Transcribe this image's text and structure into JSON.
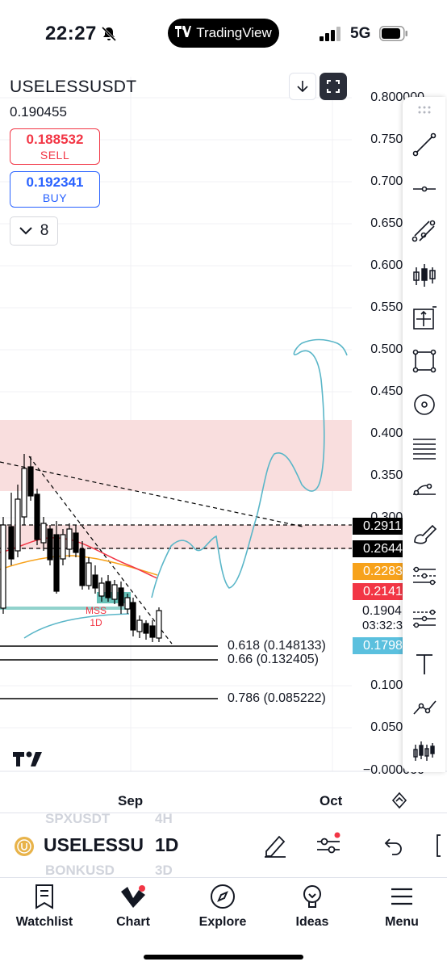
{
  "status_bar": {
    "time": "22:27",
    "app_pill": "TradingView",
    "network": "5G"
  },
  "chart": {
    "symbol": "USELESSUSDT",
    "last_price": "0.190455",
    "sell": {
      "price": "0.188532",
      "label": "SELL"
    },
    "buy": {
      "price": "0.192341",
      "label": "BUY"
    },
    "indicators_count": "8",
    "price_scale": [
      "0.800000",
      "0.750000",
      "0.700000",
      "0.650000",
      "0.600000",
      "0.550000",
      "0.500000",
      "0.450000",
      "0.400000",
      "0.350000",
      "0.300000",
      "0.100000",
      "0.050000",
      "−0.000000"
    ],
    "price_tags": [
      {
        "value": "0.2911",
        "color": "#000000"
      },
      {
        "value": "0.2644",
        "color": "#000000"
      },
      {
        "value": "0.2283",
        "color": "#f7a21b"
      },
      {
        "value": "0.2141",
        "color": "#f23645"
      },
      {
        "value": "0.1798",
        "color": "#5bc0de"
      }
    ],
    "current_price_label": "0.1904",
    "countdown": "03:32:3",
    "fib_levels": [
      {
        "label": "0.618 (0.148133)"
      },
      {
        "label": "0.66 (0.132405)"
      },
      {
        "label": "0.786 (0.085222)"
      }
    ],
    "mss_label": "MSS",
    "mss_timeframe": "1D",
    "time_axis": [
      "Sep",
      "Oct"
    ],
    "colors": {
      "zone": "#f9dede",
      "drawing": "#5ab6c8",
      "up": "#26a69a",
      "down": "#000000"
    }
  },
  "drawing_tools": [
    "trend-line-icon",
    "horizontal-line-icon",
    "channel-icon",
    "candles-icon",
    "crosshair-box-icon",
    "rectangle-icon",
    "circle-icon",
    "fib-levels-icon",
    "pitchfork-icon",
    "brush-icon",
    "parallel-lines-icon",
    "gann-icon",
    "text-icon",
    "path-icon",
    "long-position-icon"
  ],
  "bottom_toolbar": {
    "symbol": "USELESSU",
    "interval": "1D",
    "ghost_symbol_top": "SPXUSDT",
    "ghost_interval_top": "4H",
    "ghost_symbol_bottom": "BONKUSD",
    "ghost_interval_bottom": "3D"
  },
  "tab_bar": {
    "tabs": [
      {
        "label": "Watchlist",
        "icon": "watchlist-icon"
      },
      {
        "label": "Chart",
        "icon": "chart-icon"
      },
      {
        "label": "Explore",
        "icon": "compass-icon"
      },
      {
        "label": "Ideas",
        "icon": "lightbulb-icon"
      },
      {
        "label": "Menu",
        "icon": "hamburger-icon"
      }
    ]
  }
}
